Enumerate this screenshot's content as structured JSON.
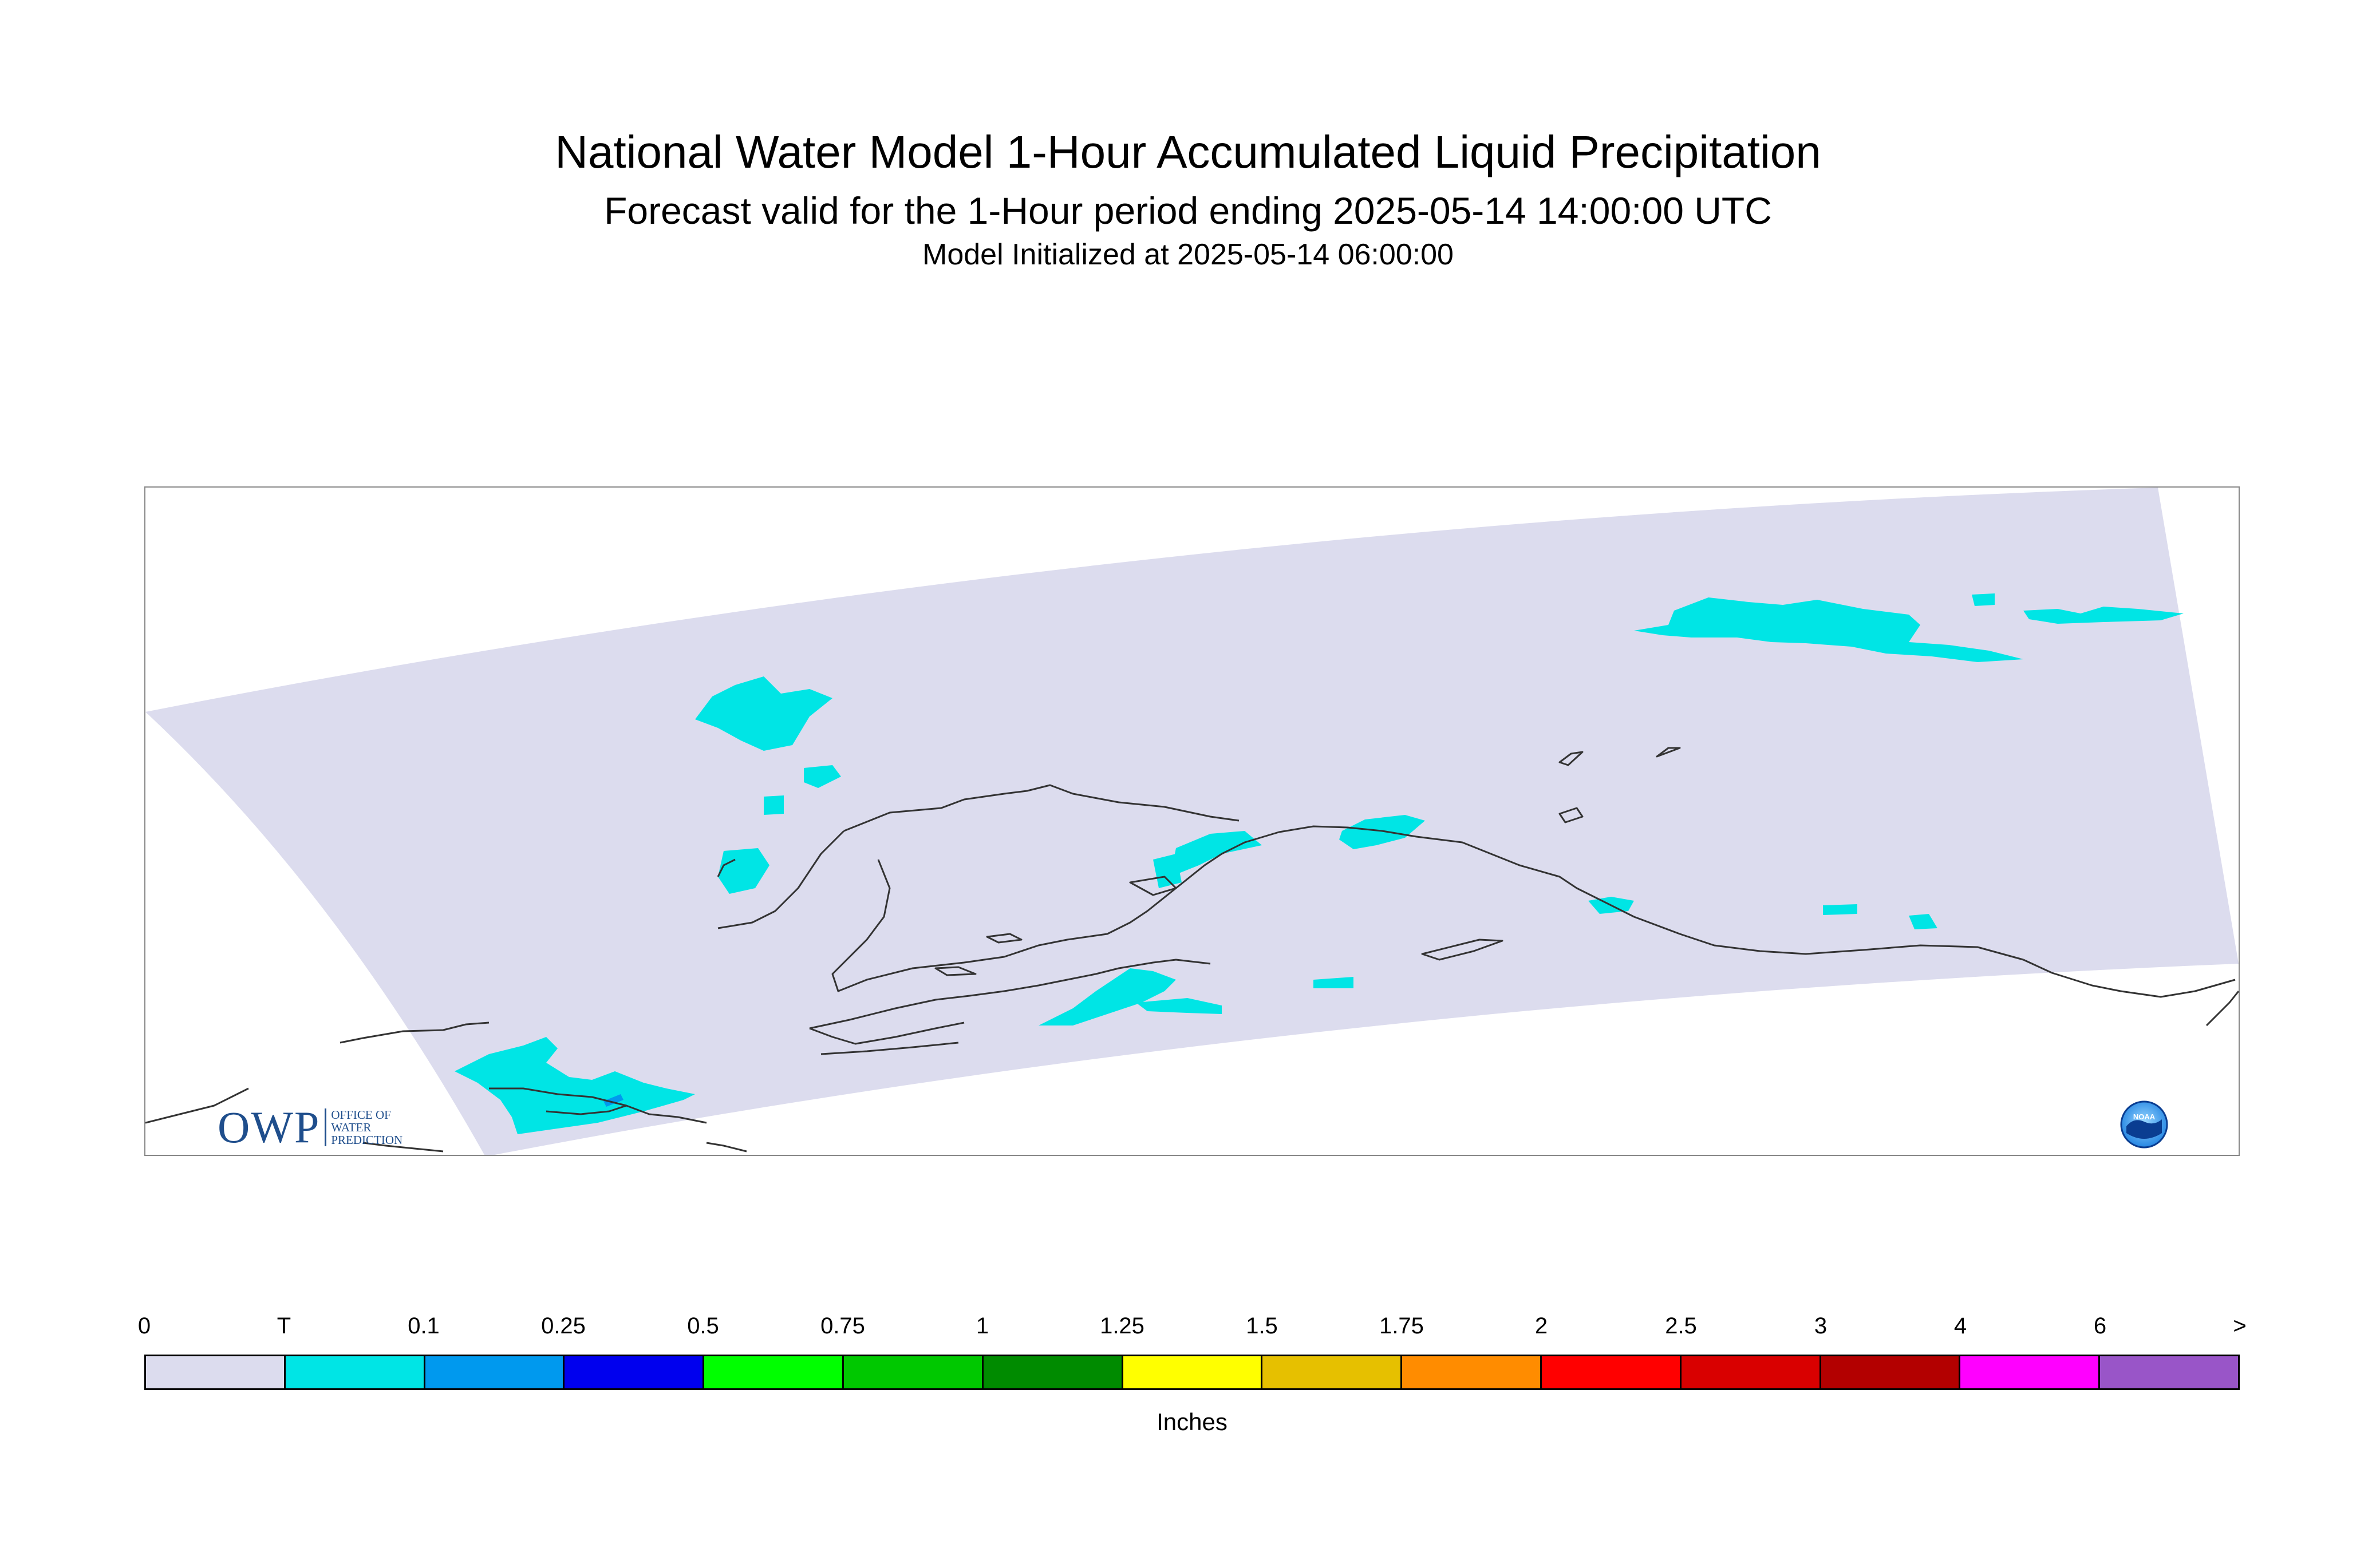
{
  "title": "National Water Model 1-Hour Accumulated Liquid Precipitation",
  "subtitle": "Forecast valid for the 1-Hour period ending 2025-05-14 14:00:00 UTC",
  "init_line": "Model Initialized at 2025-05-14 06:00:00",
  "colors": {
    "domain_fill": "#dcdcee",
    "trace_fill": "#00e5e5",
    "coastline": "#333333",
    "frame": "#888888"
  },
  "logos": {
    "owp": {
      "letters": "OWP",
      "text_lines": [
        "OFFICE OF",
        "WATER",
        "PREDICTION"
      ],
      "color": "#1f4e8c"
    },
    "noaa": {
      "text": "NOAA",
      "icon": "noaa-emblem-icon"
    }
  },
  "legend": {
    "ticks": [
      "0",
      "T",
      "0.1",
      "0.25",
      "0.5",
      "0.75",
      "1",
      "1.25",
      "1.5",
      "1.75",
      "2",
      "2.5",
      "3",
      "4",
      "6",
      ">"
    ],
    "colors": [
      "#dcdcee",
      "#00e5e5",
      "#0099ee",
      "#0000ee",
      "#00ff00",
      "#00c800",
      "#008b00",
      "#ffff00",
      "#e6c000",
      "#ff8c00",
      "#ff0000",
      "#d90000",
      "#b30000",
      "#ff00ff",
      "#9955c8"
    ],
    "units": "Inches"
  }
}
